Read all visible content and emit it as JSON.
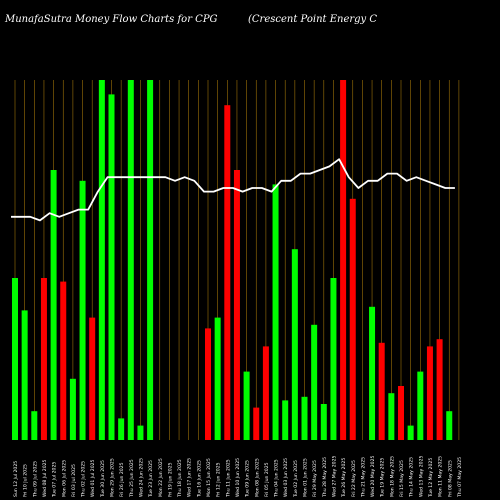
{
  "chart_data": {
    "type": "bar",
    "title_left": "MunafaSutra  Money Flow  Charts for CPG",
    "title_right": "(Crescent Point Energy C",
    "ylim": [
      0,
      100
    ],
    "colors": {
      "up": "#00ff00",
      "down": "#ff0000",
      "line": "#ffffff",
      "grid": "#b8860b",
      "background": "#000000"
    },
    "categories": [
      "Sun 12 Jul 2025",
      "Fri 10 Jul 2025",
      "Thu 09 Jul 2025",
      "Wed 08 Jul 2025",
      "Tue 07 Jul 2025",
      "Mon 06 Jul 2025",
      "Fri 03 Jul 2025",
      "Thu 02 Jul 2025",
      "Wed 01 Jul 2025",
      "Tue 30 Jun 2025",
      "Mon 29 Jun 2025",
      "Fri 26 Jun 2025",
      "Thu 25 Jun 2025",
      "Wed 24 Jun 2025",
      "Tue 23 Jun 2025",
      "Mon 22 Jun 2025",
      "Fri 19 Jun 2025",
      "Thu 18 Jun 2025",
      "Wed 17 Jun 2025",
      "Tue 16 Jun 2025",
      "Mon 15 Jun 2025",
      "Fri 12 Jun 2025",
      "Thu 11 Jun 2025",
      "Wed 10 Jun 2025",
      "Tue 09 Jun 2025",
      "Mon 08 Jun 2025",
      "Fri 05 Jun 2025",
      "Thu 04 Jun 2025",
      "Wed 03 Jun 2025",
      "Tue 02 Jun 2025",
      "Mon 01 Jun 2025",
      "Fri 29 May 2025",
      "Thu 28 May 2025",
      "Wed 27 May 2025",
      "Tue 26 May 2025",
      "Fri 22 May 2025",
      "Thu 21 May 2025",
      "Wed 20 May 2025",
      "Tue 19 May 2025",
      "Mon 18 May 2025",
      "Fri 15 May 2025",
      "Thu 14 May 2025",
      "Wed 13 May 2025",
      "Tue 12 May 2025",
      "Mon 11 May 2025",
      "Fri 08 May 2025",
      "Thu 07 May 2025"
    ],
    "values": [
      45,
      36,
      8,
      45,
      75,
      44,
      17,
      72,
      34,
      100,
      96,
      6,
      100,
      4,
      100,
      0,
      0,
      0,
      0,
      0,
      31,
      34,
      93,
      75,
      19,
      9,
      26,
      71,
      11,
      53,
      12,
      32,
      10,
      45,
      100,
      67,
      0,
      37,
      27,
      13,
      15,
      4,
      19,
      26,
      28,
      8,
      0
    ],
    "directions": [
      "up",
      "up",
      "up",
      "down",
      "up",
      "down",
      "up",
      "up",
      "down",
      "up",
      "up",
      "up",
      "up",
      "up",
      "up",
      "none",
      "none",
      "none",
      "none",
      "none",
      "down",
      "up",
      "down",
      "down",
      "up",
      "down",
      "down",
      "up",
      "up",
      "up",
      "up",
      "up",
      "up",
      "up",
      "down",
      "down",
      "none",
      "up",
      "down",
      "up",
      "down",
      "up",
      "up",
      "down",
      "down",
      "up",
      "none"
    ],
    "line_values": [
      62,
      62,
      62,
      61,
      63,
      62,
      63,
      64,
      64,
      69,
      73,
      73,
      73,
      73,
      73,
      73,
      73,
      72,
      73,
      72,
      69,
      69,
      70,
      70,
      69,
      70,
      70,
      69,
      72,
      72,
      74,
      74,
      75,
      76,
      78,
      73,
      70,
      72,
      72,
      74,
      74,
      72,
      73,
      72,
      71,
      70,
      70
    ]
  }
}
